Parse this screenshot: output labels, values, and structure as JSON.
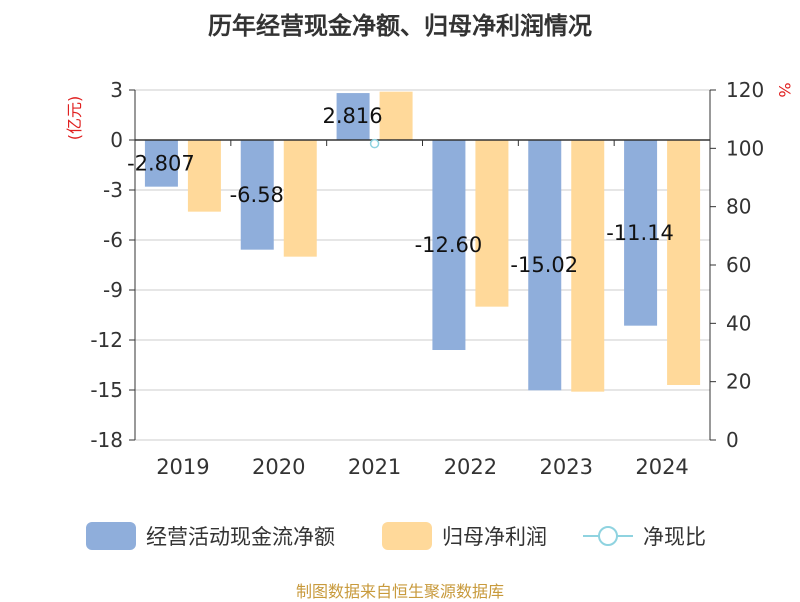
{
  "title": "历年经营现金净额、归母净利润情况",
  "source": "制图数据来自恒生聚源数据库",
  "colors": {
    "cash": "#8faedb",
    "profit": "#ffd99a",
    "ratio": "#8fd3e0",
    "unit_color": "#e02020",
    "axis": "#333333",
    "grid": "#cccccc"
  },
  "chart_data": {
    "type": "bar",
    "title": "历年经营现金净额、归母净利润情况",
    "categories": [
      "2019",
      "2020",
      "2021",
      "2022",
      "2023",
      "2024"
    ],
    "left_axis": {
      "label": "(亿元)",
      "ylim": [
        -18,
        3
      ],
      "ticks": [
        "3",
        "0",
        "-3",
        "-6",
        "-9",
        "-12",
        "-15",
        "-18"
      ]
    },
    "right_axis": {
      "label": "%",
      "ylim": [
        0,
        120
      ],
      "ticks": [
        "120",
        "100",
        "80",
        "60",
        "40",
        "20",
        "0"
      ]
    },
    "series": [
      {
        "name": "经营活动现金流净额",
        "axis": "left",
        "values": [
          -2.8,
          -6.58,
          2.816,
          -12.6,
          -15.02,
          -11.14
        ],
        "labels": [
          "-2.807",
          "-6.58",
          "2.816",
          "-12.60",
          "-15.02",
          "-11.14"
        ]
      },
      {
        "name": "归母净利润",
        "axis": "left",
        "values": [
          -4.3,
          -7.0,
          2.9,
          -10.0,
          -15.1,
          -14.7
        ]
      },
      {
        "name": "净现比",
        "axis": "right",
        "values": [
          null,
          null,
          101.6,
          null,
          null,
          null
        ]
      }
    ],
    "grid": true,
    "legend": "bottom"
  }
}
